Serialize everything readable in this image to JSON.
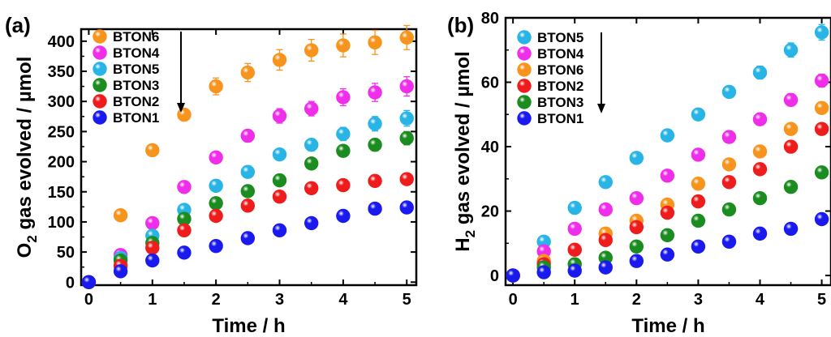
{
  "chart_data": [
    {
      "panel_label": "(a)",
      "type": "scatter",
      "xlabel": "Time / h",
      "ylabel_parts": [
        "O",
        "2",
        " gas evolved / µmol"
      ],
      "xlim": [
        -0.12,
        5.15
      ],
      "ylim": [
        -5,
        420
      ],
      "x_ticks": [
        0,
        1,
        2,
        3,
        4,
        5
      ],
      "y_ticks": [
        0,
        50,
        100,
        150,
        200,
        250,
        300,
        350,
        400
      ],
      "x": [
        0,
        0.5,
        1,
        1.5,
        2,
        2.5,
        3,
        3.5,
        4,
        4.5,
        5
      ],
      "legend_position": "top-left",
      "legend_arrow": "down",
      "series": [
        {
          "name": "BTON6",
          "color": "#f7941d",
          "values": [
            0,
            111,
            219,
            278,
            325,
            348,
            369,
            385,
            393,
            398,
            406
          ],
          "errors": [
            0,
            6,
            8,
            10,
            14,
            15,
            17,
            18,
            19,
            20,
            20
          ]
        },
        {
          "name": "BTON4",
          "color": "#ee2ee8",
          "values": [
            0,
            45,
            98,
            158,
            207,
            243,
            276,
            288,
            307,
            315,
            325
          ],
          "errors": [
            0,
            4,
            6,
            7,
            8,
            10,
            12,
            12,
            14,
            15,
            16
          ]
        },
        {
          "name": "BTON5",
          "color": "#29b4e6",
          "values": [
            0,
            40,
            77,
            120,
            160,
            183,
            212,
            228,
            246,
            263,
            272
          ],
          "errors": [
            0,
            4,
            5,
            6,
            7,
            8,
            9,
            10,
            11,
            12,
            13
          ]
        },
        {
          "name": "BTON3",
          "color": "#1b8c1f",
          "values": [
            0,
            36,
            65,
            105,
            131,
            151,
            169,
            197,
            218,
            228,
            239
          ],
          "errors": [
            0,
            3,
            4,
            5,
            6,
            7,
            8,
            8,
            9,
            10,
            11
          ]
        },
        {
          "name": "BTON2",
          "color": "#ee1c1c",
          "values": [
            0,
            27,
            57,
            86,
            110,
            127,
            142,
            156,
            161,
            168,
            171
          ],
          "errors": [
            0,
            3,
            4,
            5,
            5,
            6,
            6,
            7,
            7,
            8,
            8
          ]
        },
        {
          "name": "BTON1",
          "color": "#1a1aee",
          "values": [
            0,
            18,
            36,
            49,
            60,
            73,
            86,
            98,
            110,
            122,
            124
          ],
          "errors": [
            0,
            2,
            3,
            3,
            4,
            4,
            5,
            5,
            6,
            6,
            6
          ]
        }
      ]
    },
    {
      "panel_label": "(b)",
      "type": "scatter",
      "xlabel": "Time / h",
      "ylabel_parts": [
        "H",
        "2",
        " gas evolved / µmol"
      ],
      "xlim": [
        -0.12,
        5.15
      ],
      "ylim": [
        -3,
        80
      ],
      "x_ticks": [
        0,
        1,
        2,
        3,
        4,
        5
      ],
      "y_ticks": [
        0,
        20,
        40,
        60,
        80
      ],
      "x": [
        0,
        0.5,
        1,
        1.5,
        2,
        2.5,
        3,
        3.5,
        4,
        4.5,
        5
      ],
      "legend_position": "top-left",
      "legend_arrow": "down",
      "series": [
        {
          "name": "BTON5",
          "color": "#29b4e6",
          "values": [
            0,
            10.5,
            21,
            29,
            36.5,
            43.5,
            50,
            57,
            63,
            70,
            75.5
          ],
          "errors": [
            0,
            0.8,
            1,
            1.2,
            1.3,
            1.5,
            1.6,
            1.8,
            2,
            2.2,
            2.4
          ]
        },
        {
          "name": "BTON4",
          "color": "#ee2ee8",
          "values": [
            0,
            7.5,
            14.5,
            20.5,
            24,
            31,
            37.5,
            43,
            48.5,
            54.5,
            60.5
          ],
          "errors": [
            0,
            0.6,
            0.8,
            1,
            1.1,
            1.2,
            1.3,
            1.5,
            1.7,
            1.9,
            2
          ]
        },
        {
          "name": "BTON6",
          "color": "#f7941d",
          "values": [
            0,
            4.5,
            8,
            13,
            17,
            22,
            28.5,
            34.5,
            38.5,
            45.5,
            52
          ],
          "errors": [
            0,
            0.5,
            0.6,
            0.8,
            1,
            1.1,
            1.2,
            1.3,
            1.4,
            1.6,
            1.8
          ]
        },
        {
          "name": "BTON2",
          "color": "#ee1c1c",
          "values": [
            0,
            3.5,
            8,
            11,
            15,
            19.5,
            23,
            29,
            33,
            40,
            45.5
          ],
          "errors": [
            0,
            0.4,
            0.5,
            0.6,
            0.7,
            0.8,
            0.9,
            1,
            1.1,
            1.2,
            1.3
          ]
        },
        {
          "name": "BTON3",
          "color": "#1b8c1f",
          "values": [
            0,
            2.5,
            3.5,
            5.5,
            9,
            12.5,
            17,
            20.5,
            24,
            27.5,
            32
          ],
          "errors": [
            0,
            0.3,
            0.4,
            0.5,
            0.6,
            0.7,
            0.8,
            0.9,
            1,
            1.1,
            1.2
          ]
        },
        {
          "name": "BTON1",
          "color": "#1a1aee",
          "values": [
            0,
            1,
            1.5,
            2.5,
            4.5,
            6.5,
            9,
            10.5,
            13,
            14.5,
            17.5
          ],
          "errors": [
            0,
            0.2,
            0.3,
            0.4,
            0.5,
            0.5,
            0.6,
            0.7,
            0.8,
            0.9,
            1
          ]
        }
      ]
    }
  ]
}
